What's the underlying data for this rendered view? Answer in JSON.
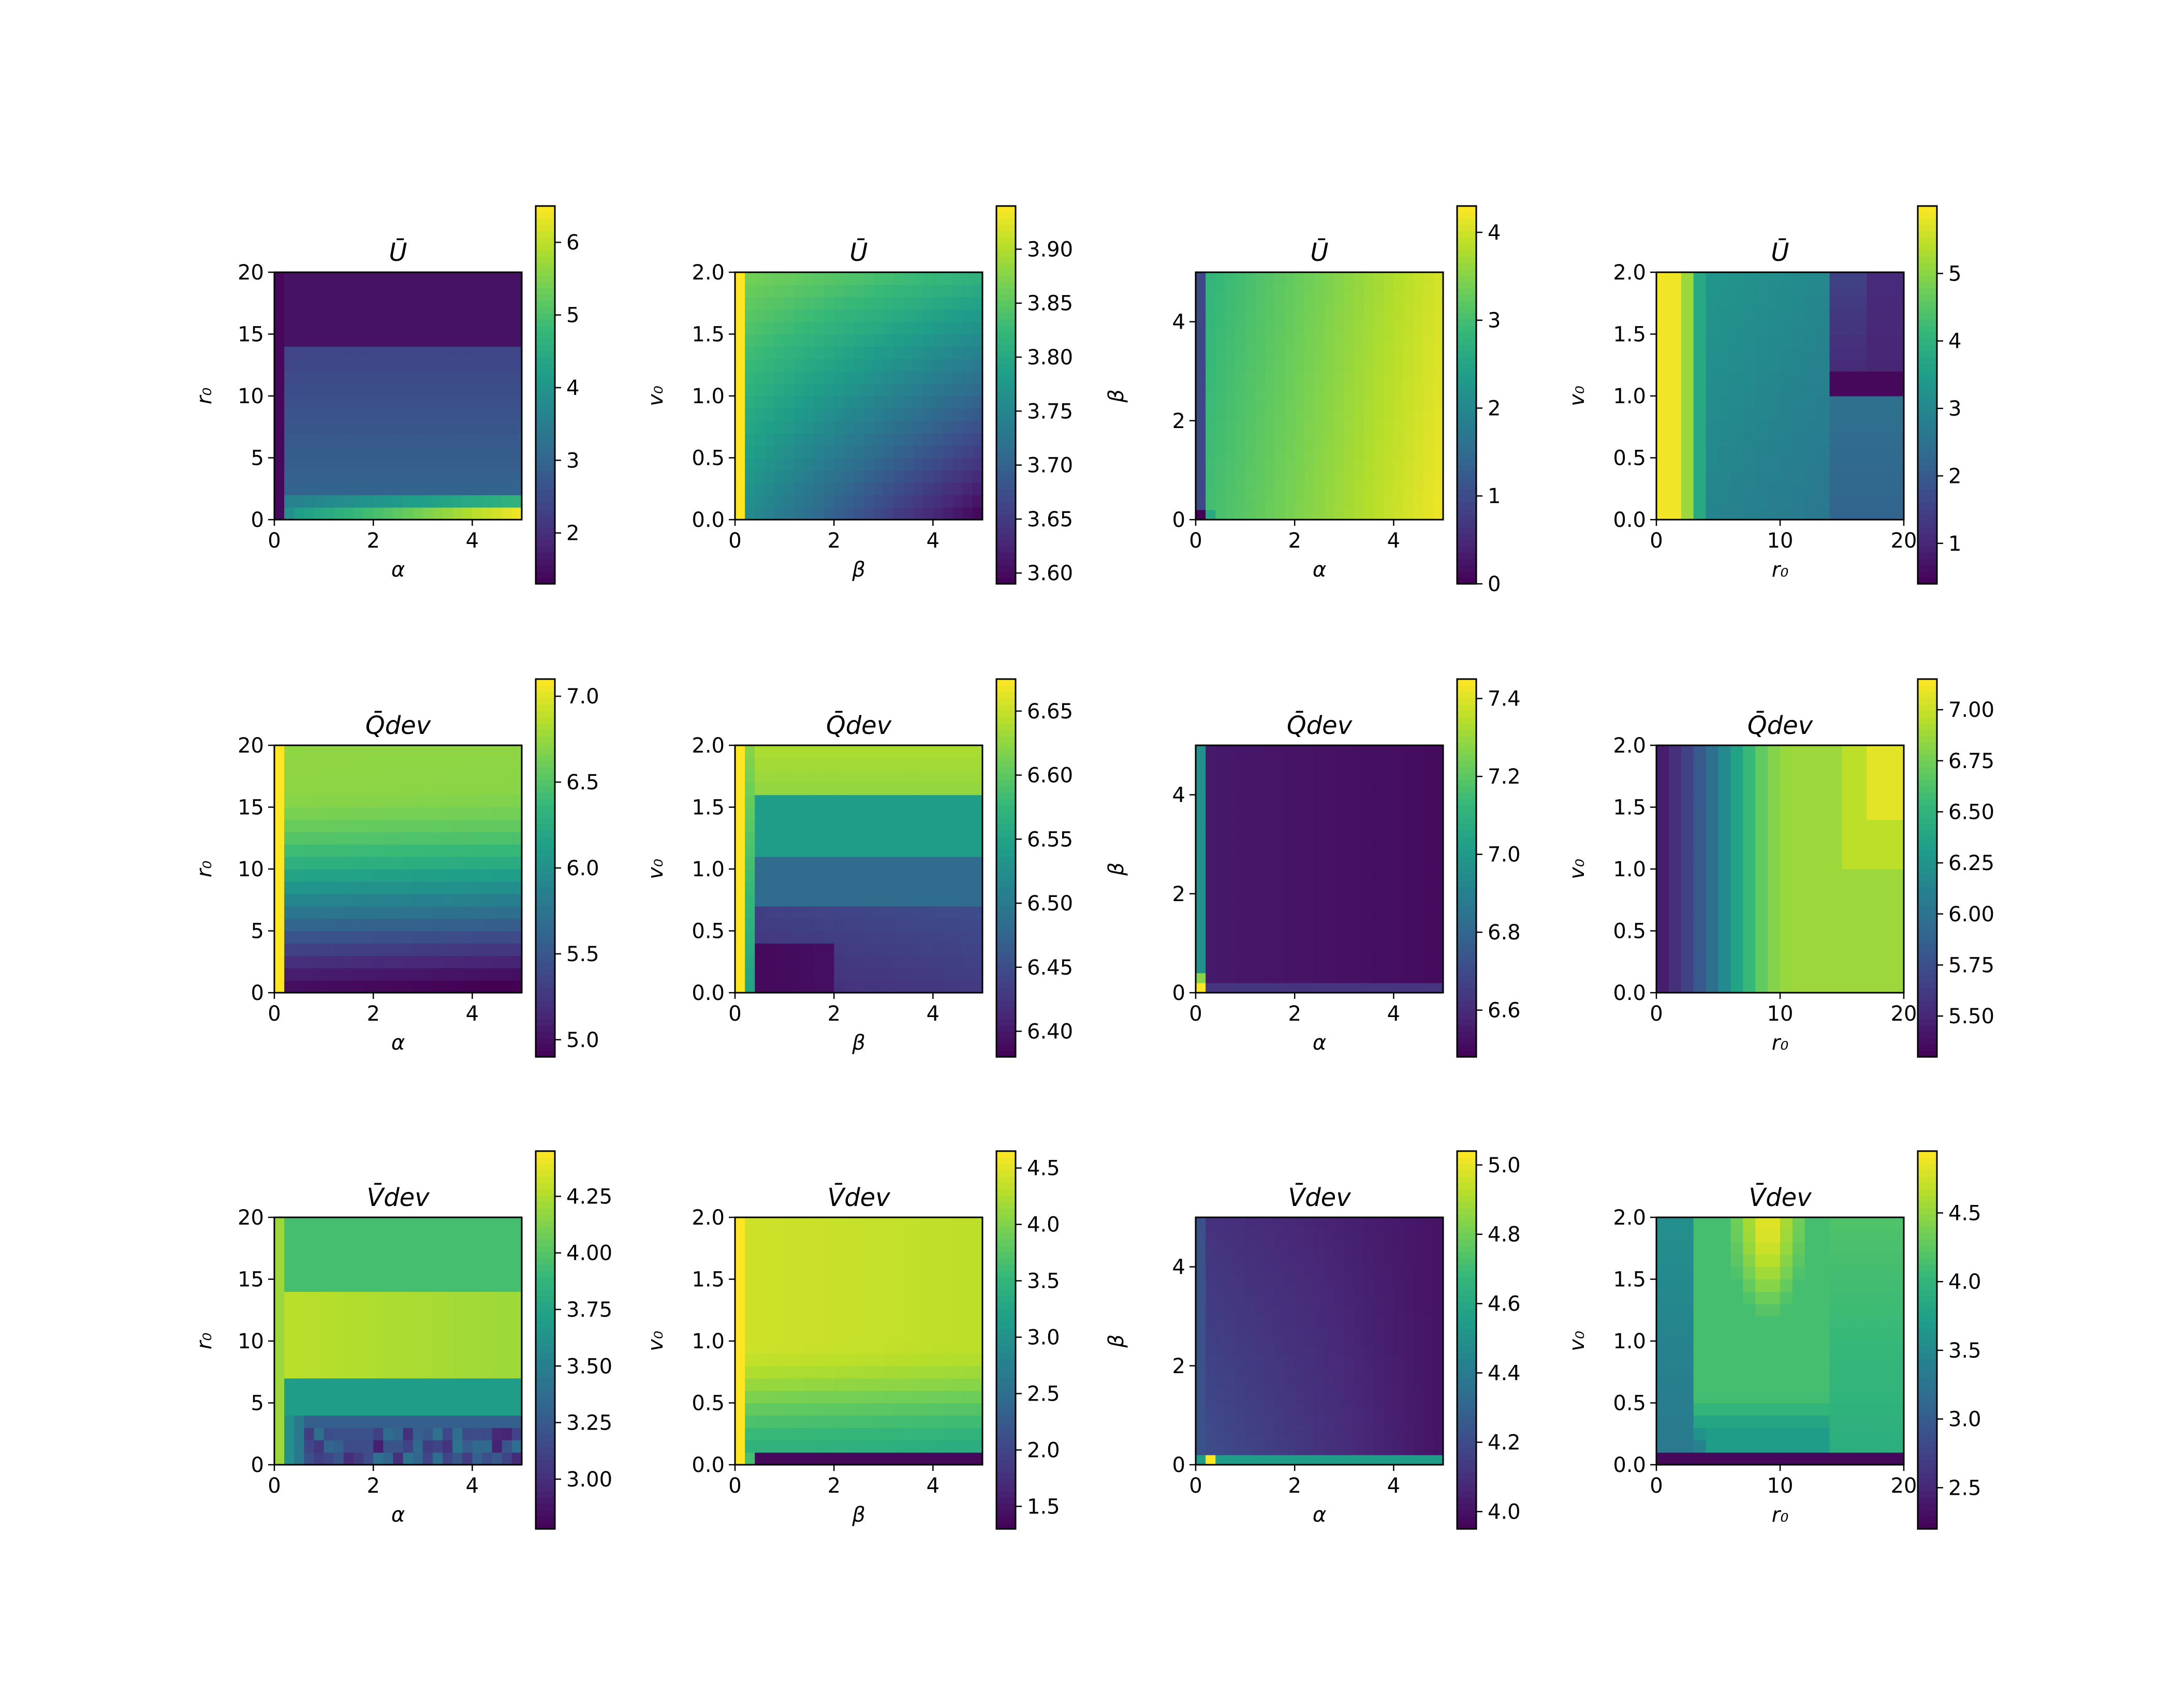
{
  "figure": {
    "rows": 3,
    "cols": 4,
    "colormap": "viridis",
    "colormap_stops": [
      "#440154",
      "#482878",
      "#3e4989",
      "#31688e",
      "#26828e",
      "#1f9e89",
      "#35b779",
      "#6ece58",
      "#b5de2b",
      "#fde725"
    ]
  },
  "chart_data": [
    {
      "type": "heatmap",
      "title": "Ū",
      "xlabel": "α",
      "ylabel": "r₀",
      "xlim": [
        0,
        5
      ],
      "ylim": [
        0,
        20
      ],
      "nx": 25,
      "ny": 20,
      "x_ticks": [
        "0",
        "2",
        "4"
      ],
      "x_tick_values": [
        0,
        2,
        4
      ],
      "y_ticks": [
        "0",
        "5",
        "10",
        "15",
        "20"
      ],
      "y_tick_values": [
        0,
        5,
        10,
        15,
        20
      ],
      "colorbar": {
        "min": 1.3,
        "max": 6.5,
        "ticks": [
          "2",
          "3",
          "4",
          "5",
          "6"
        ],
        "tick_values": [
          2,
          3,
          4,
          5,
          6
        ]
      },
      "pattern": "u_alpha_r0"
    },
    {
      "type": "heatmap",
      "title": "Ū",
      "xlabel": "β",
      "ylabel": "v₀",
      "xlim": [
        0,
        5
      ],
      "ylim": [
        0,
        2
      ],
      "nx": 25,
      "ny": 20,
      "x_ticks": [
        "0",
        "2",
        "4"
      ],
      "x_tick_values": [
        0,
        2,
        4
      ],
      "y_ticks": [
        "0.0",
        "0.5",
        "1.0",
        "1.5",
        "2.0"
      ],
      "y_tick_values": [
        0,
        0.5,
        1,
        1.5,
        2
      ],
      "colorbar": {
        "min": 3.59,
        "max": 3.94,
        "ticks": [
          "3.60",
          "3.65",
          "3.70",
          "3.75",
          "3.80",
          "3.85",
          "3.90"
        ],
        "tick_values": [
          3.6,
          3.65,
          3.7,
          3.75,
          3.8,
          3.85,
          3.9
        ]
      },
      "pattern": "u_beta_v0"
    },
    {
      "type": "heatmap",
      "title": "Ū",
      "xlabel": "α",
      "ylabel": "β",
      "xlim": [
        0,
        5
      ],
      "ylim": [
        0,
        5
      ],
      "nx": 25,
      "ny": 25,
      "x_ticks": [
        "0",
        "2",
        "4"
      ],
      "x_tick_values": [
        0,
        2,
        4
      ],
      "y_ticks": [
        "0",
        "2",
        "4"
      ],
      "y_tick_values": [
        0,
        2,
        4
      ],
      "colorbar": {
        "min": 0,
        "max": 4.3,
        "ticks": [
          "0",
          "1",
          "2",
          "3",
          "4"
        ],
        "tick_values": [
          0,
          1,
          2,
          3,
          4
        ]
      },
      "pattern": "u_alpha_beta"
    },
    {
      "type": "heatmap",
      "title": "Ū",
      "xlabel": "r₀",
      "ylabel": "v₀",
      "xlim": [
        0,
        20
      ],
      "ylim": [
        0,
        2
      ],
      "nx": 20,
      "ny": 20,
      "x_ticks": [
        "0",
        "10",
        "20"
      ],
      "x_tick_values": [
        0,
        10,
        20
      ],
      "y_ticks": [
        "0.0",
        "0.5",
        "1.0",
        "1.5",
        "2.0"
      ],
      "y_tick_values": [
        0,
        0.5,
        1,
        1.5,
        2
      ],
      "colorbar": {
        "min": 0.4,
        "max": 6.0,
        "ticks": [
          "1",
          "2",
          "3",
          "4",
          "5"
        ],
        "tick_values": [
          1,
          2,
          3,
          4,
          5
        ]
      },
      "pattern": "u_r0_v0"
    },
    {
      "type": "heatmap",
      "title": "Q̄dev",
      "xlabel": "α",
      "ylabel": "r₀",
      "xlim": [
        0,
        5
      ],
      "ylim": [
        0,
        20
      ],
      "nx": 25,
      "ny": 20,
      "x_ticks": [
        "0",
        "2",
        "4"
      ],
      "x_tick_values": [
        0,
        2,
        4
      ],
      "y_ticks": [
        "0",
        "5",
        "10",
        "15",
        "20"
      ],
      "y_tick_values": [
        0,
        5,
        10,
        15,
        20
      ],
      "colorbar": {
        "min": 4.9,
        "max": 7.1,
        "ticks": [
          "5.0",
          "5.5",
          "6.0",
          "6.5",
          "7.0"
        ],
        "tick_values": [
          5,
          5.5,
          6,
          6.5,
          7
        ]
      },
      "pattern": "q_alpha_r0"
    },
    {
      "type": "heatmap",
      "title": "Q̄dev",
      "xlabel": "β",
      "ylabel": "v₀",
      "xlim": [
        0,
        5
      ],
      "ylim": [
        0,
        2
      ],
      "nx": 25,
      "ny": 20,
      "x_ticks": [
        "0",
        "2",
        "4"
      ],
      "x_tick_values": [
        0,
        2,
        4
      ],
      "y_ticks": [
        "0.0",
        "0.5",
        "1.0",
        "1.5",
        "2.0"
      ],
      "y_tick_values": [
        0,
        0.5,
        1,
        1.5,
        2
      ],
      "colorbar": {
        "min": 6.38,
        "max": 6.675,
        "ticks": [
          "6.40",
          "6.45",
          "6.50",
          "6.55",
          "6.60",
          "6.65"
        ],
        "tick_values": [
          6.4,
          6.45,
          6.5,
          6.55,
          6.6,
          6.65
        ]
      },
      "pattern": "q_beta_v0"
    },
    {
      "type": "heatmap",
      "title": "Q̄dev",
      "xlabel": "α",
      "ylabel": "β",
      "xlim": [
        0,
        5
      ],
      "ylim": [
        0,
        5
      ],
      "nx": 25,
      "ny": 25,
      "x_ticks": [
        "0",
        "2",
        "4"
      ],
      "x_tick_values": [
        0,
        2,
        4
      ],
      "y_ticks": [
        "0",
        "2",
        "4"
      ],
      "y_tick_values": [
        0,
        2,
        4
      ],
      "colorbar": {
        "min": 6.48,
        "max": 7.45,
        "ticks": [
          "6.6",
          "6.8",
          "7.0",
          "7.2",
          "7.4"
        ],
        "tick_values": [
          6.6,
          6.8,
          7,
          7.2,
          7.4
        ]
      },
      "pattern": "q_alpha_beta"
    },
    {
      "type": "heatmap",
      "title": "Q̄dev",
      "xlabel": "r₀",
      "ylabel": "v₀",
      "xlim": [
        0,
        20
      ],
      "ylim": [
        0,
        2
      ],
      "nx": 20,
      "ny": 20,
      "x_ticks": [
        "0",
        "10",
        "20"
      ],
      "x_tick_values": [
        0,
        10,
        20
      ],
      "y_ticks": [
        "0.0",
        "0.5",
        "1.0",
        "1.5",
        "2.0"
      ],
      "y_tick_values": [
        0,
        0.5,
        1,
        1.5,
        2
      ],
      "colorbar": {
        "min": 5.3,
        "max": 7.15,
        "ticks": [
          "5.50",
          "5.75",
          "6.00",
          "6.25",
          "6.50",
          "6.75",
          "7.00"
        ],
        "tick_values": [
          5.5,
          5.75,
          6,
          6.25,
          6.5,
          6.75,
          7
        ]
      },
      "pattern": "q_r0_v0"
    },
    {
      "type": "heatmap",
      "title": "V̄dev",
      "xlabel": "α",
      "ylabel": "r₀",
      "xlim": [
        0,
        5
      ],
      "ylim": [
        0,
        20
      ],
      "nx": 25,
      "ny": 20,
      "x_ticks": [
        "0",
        "2",
        "4"
      ],
      "x_tick_values": [
        0,
        2,
        4
      ],
      "y_ticks": [
        "0",
        "5",
        "10",
        "15",
        "20"
      ],
      "y_tick_values": [
        0,
        5,
        10,
        15,
        20
      ],
      "colorbar": {
        "min": 2.78,
        "max": 4.45,
        "ticks": [
          "3.00",
          "3.25",
          "3.50",
          "3.75",
          "4.00",
          "4.25"
        ],
        "tick_values": [
          3,
          3.25,
          3.5,
          3.75,
          4,
          4.25
        ]
      },
      "pattern": "v_alpha_r0"
    },
    {
      "type": "heatmap",
      "title": "V̄dev",
      "xlabel": "β",
      "ylabel": "v₀",
      "xlim": [
        0,
        5
      ],
      "ylim": [
        0,
        2
      ],
      "nx": 25,
      "ny": 20,
      "x_ticks": [
        "0",
        "2",
        "4"
      ],
      "x_tick_values": [
        0,
        2,
        4
      ],
      "y_ticks": [
        "0.0",
        "0.5",
        "1.0",
        "1.5",
        "2.0"
      ],
      "y_tick_values": [
        0,
        0.5,
        1,
        1.5,
        2
      ],
      "colorbar": {
        "min": 1.3,
        "max": 4.65,
        "ticks": [
          "1.5",
          "2.0",
          "2.5",
          "3.0",
          "3.5",
          "4.0",
          "4.5"
        ],
        "tick_values": [
          1.5,
          2,
          2.5,
          3,
          3.5,
          4,
          4.5
        ]
      },
      "pattern": "v_beta_v0"
    },
    {
      "type": "heatmap",
      "title": "V̄dev",
      "xlabel": "α",
      "ylabel": "β",
      "xlim": [
        0,
        5
      ],
      "ylim": [
        0,
        5
      ],
      "nx": 25,
      "ny": 25,
      "x_ticks": [
        "0",
        "2",
        "4"
      ],
      "x_tick_values": [
        0,
        2,
        4
      ],
      "y_ticks": [
        "0",
        "2",
        "4"
      ],
      "y_tick_values": [
        0,
        2,
        4
      ],
      "colorbar": {
        "min": 3.95,
        "max": 5.04,
        "ticks": [
          "4.0",
          "4.2",
          "4.4",
          "4.6",
          "4.8",
          "5.0"
        ],
        "tick_values": [
          4,
          4.2,
          4.4,
          4.6,
          4.8,
          5
        ]
      },
      "pattern": "v_alpha_beta"
    },
    {
      "type": "heatmap",
      "title": "V̄dev",
      "xlabel": "r₀",
      "ylabel": "v₀",
      "xlim": [
        0,
        20
      ],
      "ylim": [
        0,
        2
      ],
      "nx": 20,
      "ny": 20,
      "x_ticks": [
        "0",
        "10",
        "20"
      ],
      "x_tick_values": [
        0,
        10,
        20
      ],
      "y_ticks": [
        "0.0",
        "0.5",
        "1.0",
        "1.5",
        "2.0"
      ],
      "y_tick_values": [
        0,
        0.5,
        1,
        1.5,
        2
      ],
      "colorbar": {
        "min": 2.2,
        "max": 4.95,
        "ticks": [
          "2.5",
          "3.0",
          "3.5",
          "4.0",
          "4.5"
        ],
        "tick_values": [
          2.5,
          3,
          3.5,
          4,
          4.5
        ]
      },
      "pattern": "v_r0_v0"
    }
  ]
}
